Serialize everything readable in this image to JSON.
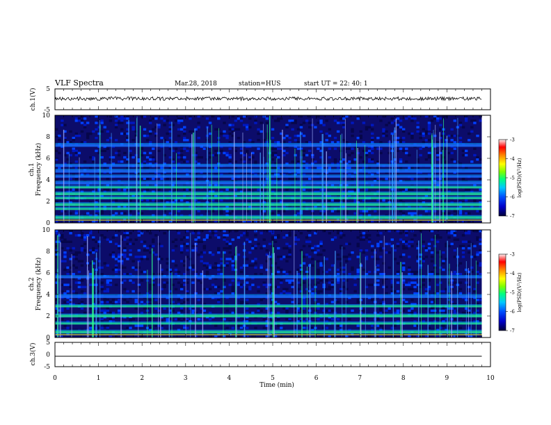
{
  "header": {
    "title": "VLF Spectra",
    "date": "Mar.28, 2018",
    "station": "station=HUS",
    "start": "start  UT =  22: 40: 1"
  },
  "chart_data": [
    {
      "panel": "ch1-waveform",
      "type": "line",
      "ylabel": "ch.1(V)",
      "ylim": [
        -5,
        5
      ],
      "yticks": [
        "5",
        "-5"
      ],
      "xlim": [
        0,
        10
      ],
      "series": [
        {
          "values": "noise trace near -0.3 V from 0 to 9.8 min"
        }
      ],
      "color": "#000000"
    },
    {
      "panel": "ch1-spectrogram",
      "type": "heatmap",
      "ylabel_line1": "ch.1",
      "ylabel_line2": "Frequency (kHz)",
      "ylim": [
        0,
        10
      ],
      "yticks": [
        "0",
        "2",
        "4",
        "6",
        "8",
        "10"
      ],
      "xlim": [
        0,
        10
      ],
      "data_end_min": 9.8,
      "colorbar": {
        "label": "log(PSD)(V²/Hz)",
        "range": [
          -7,
          -3
        ],
        "ticks": [
          "-3",
          "-4",
          "-5",
          "-6",
          "-7"
        ]
      },
      "bands_khz": [
        0.5,
        1.3,
        1.7,
        2.3,
        2.7,
        3.3,
        3.7,
        4.3,
        4.8,
        5.3,
        7.2
      ]
    },
    {
      "panel": "ch2-spectrogram",
      "type": "heatmap",
      "ylabel_line1": "ch.2",
      "ylabel_line2": "Frequency (kHz)",
      "ylim": [
        0,
        10
      ],
      "yticks": [
        "0",
        "2",
        "4",
        "6",
        "8",
        "10"
      ],
      "xlim": [
        0,
        10
      ],
      "data_end_min": 9.8,
      "colorbar": {
        "label": "log(PSD)(V²/Hz)",
        "range": [
          -7,
          -3
        ],
        "ticks": [
          "-3",
          "-4",
          "-5",
          "-6",
          "-7"
        ]
      },
      "bands_khz": [
        0.5,
        1.3,
        2.0,
        2.9,
        3.8,
        5.6
      ]
    },
    {
      "panel": "ch3-waveform",
      "type": "line",
      "ylabel": "ch.3(V)",
      "ylim": [
        -5,
        5
      ],
      "yticks": [
        "5",
        "0",
        "-5"
      ],
      "xlim": [
        0,
        10
      ],
      "series": [
        {
          "values": "flat line at -1.5 V from 0 to 9.8 min"
        }
      ],
      "xlabel": "Time (min)",
      "xticks": [
        "0",
        "1",
        "2",
        "3",
        "4",
        "5",
        "6",
        "7",
        "8",
        "9",
        "10"
      ]
    }
  ],
  "colors": {
    "background_spec": "#0a0a50",
    "colormap": [
      "#00003a",
      "#0000c8",
      "#0050ff",
      "#00c8ff",
      "#00ff80",
      "#80ff00",
      "#ffff00",
      "#ff8000",
      "#ff0000",
      "#ffffff"
    ]
  }
}
